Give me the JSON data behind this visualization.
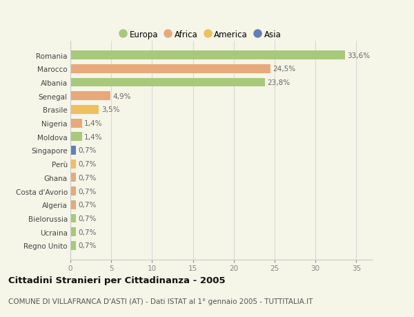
{
  "countries": [
    "Romania",
    "Marocco",
    "Albania",
    "Senegal",
    "Brasile",
    "Nigeria",
    "Moldova",
    "Singapore",
    "Perù",
    "Ghana",
    "Costa d'Avorio",
    "Algeria",
    "Bielorussia",
    "Ucraina",
    "Regno Unito"
  ],
  "values": [
    33.6,
    24.5,
    23.8,
    4.9,
    3.5,
    1.4,
    1.4,
    0.7,
    0.7,
    0.7,
    0.7,
    0.7,
    0.7,
    0.7,
    0.7
  ],
  "labels": [
    "33,6%",
    "24,5%",
    "23,8%",
    "4,9%",
    "3,5%",
    "1,4%",
    "1,4%",
    "0,7%",
    "0,7%",
    "0,7%",
    "0,7%",
    "0,7%",
    "0,7%",
    "0,7%",
    "0,7%"
  ],
  "colors": [
    "#a8c87a",
    "#e8a97a",
    "#a8c87a",
    "#e8a97a",
    "#f0c060",
    "#e8a97a",
    "#a8c87a",
    "#6080b8",
    "#f0c060",
    "#e8a97a",
    "#e8a97a",
    "#e8a97a",
    "#a8c87a",
    "#a8c87a",
    "#a8c87a"
  ],
  "legend_labels": [
    "Europa",
    "Africa",
    "America",
    "Asia"
  ],
  "legend_colors": [
    "#a8c87a",
    "#e8a97a",
    "#f0c060",
    "#6080b8"
  ],
  "title": "Cittadini Stranieri per Cittadinanza - 2005",
  "subtitle": "COMUNE DI VILLAFRANCA D'ASTI (AT) - Dati ISTAT al 1° gennaio 2005 - TUTTITALIA.IT",
  "xlim": [
    0,
    37
  ],
  "xticks": [
    0,
    5,
    10,
    15,
    20,
    25,
    30,
    35
  ],
  "bg_color": "#f5f5e8",
  "grid_color": "#d8d8d8",
  "bar_height": 0.65,
  "label_fontsize": 7.5,
  "tick_fontsize": 7.5,
  "title_fontsize": 9.5,
  "subtitle_fontsize": 7.5
}
